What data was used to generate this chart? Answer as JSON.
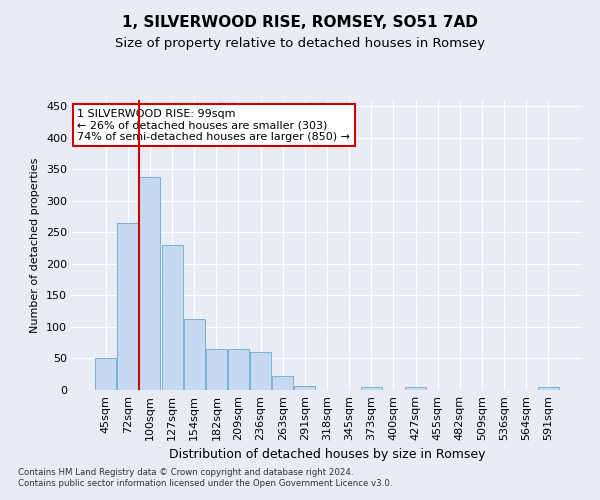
{
  "title1": "1, SILVERWOOD RISE, ROMSEY, SO51 7AD",
  "title2": "Size of property relative to detached houses in Romsey",
  "xlabel": "Distribution of detached houses by size in Romsey",
  "ylabel": "Number of detached properties",
  "categories": [
    "45sqm",
    "72sqm",
    "100sqm",
    "127sqm",
    "154sqm",
    "182sqm",
    "209sqm",
    "236sqm",
    "263sqm",
    "291sqm",
    "318sqm",
    "345sqm",
    "373sqm",
    "400sqm",
    "427sqm",
    "455sqm",
    "482sqm",
    "509sqm",
    "536sqm",
    "564sqm",
    "591sqm"
  ],
  "values": [
    50,
    265,
    338,
    230,
    113,
    65,
    65,
    60,
    23,
    6,
    0,
    0,
    4,
    0,
    4,
    0,
    0,
    0,
    0,
    0,
    4
  ],
  "bar_color": "#c5d9f0",
  "bar_edge_color": "#7bafd4",
  "vline_x_index": 2,
  "vline_color": "#cc0000",
  "annotation_line1": "1 SILVERWOOD RISE: 99sqm",
  "annotation_line2": "← 26% of detached houses are smaller (303)",
  "annotation_line3": "74% of semi-detached houses are larger (850) →",
  "annotation_box_color": "#ffffff",
  "annotation_box_edge_color": "#cc0000",
  "ylim": [
    0,
    460
  ],
  "yticks": [
    0,
    50,
    100,
    150,
    200,
    250,
    300,
    350,
    400,
    450
  ],
  "title1_fontsize": 11,
  "title2_fontsize": 9.5,
  "xlabel_fontsize": 9,
  "ylabel_fontsize": 8,
  "tick_fontsize": 8,
  "footnote": "Contains HM Land Registry data © Crown copyright and database right 2024.\nContains public sector information licensed under the Open Government Licence v3.0.",
  "background_color": "#e8ecf5",
  "plot_bg_color": "#e8ecf5"
}
